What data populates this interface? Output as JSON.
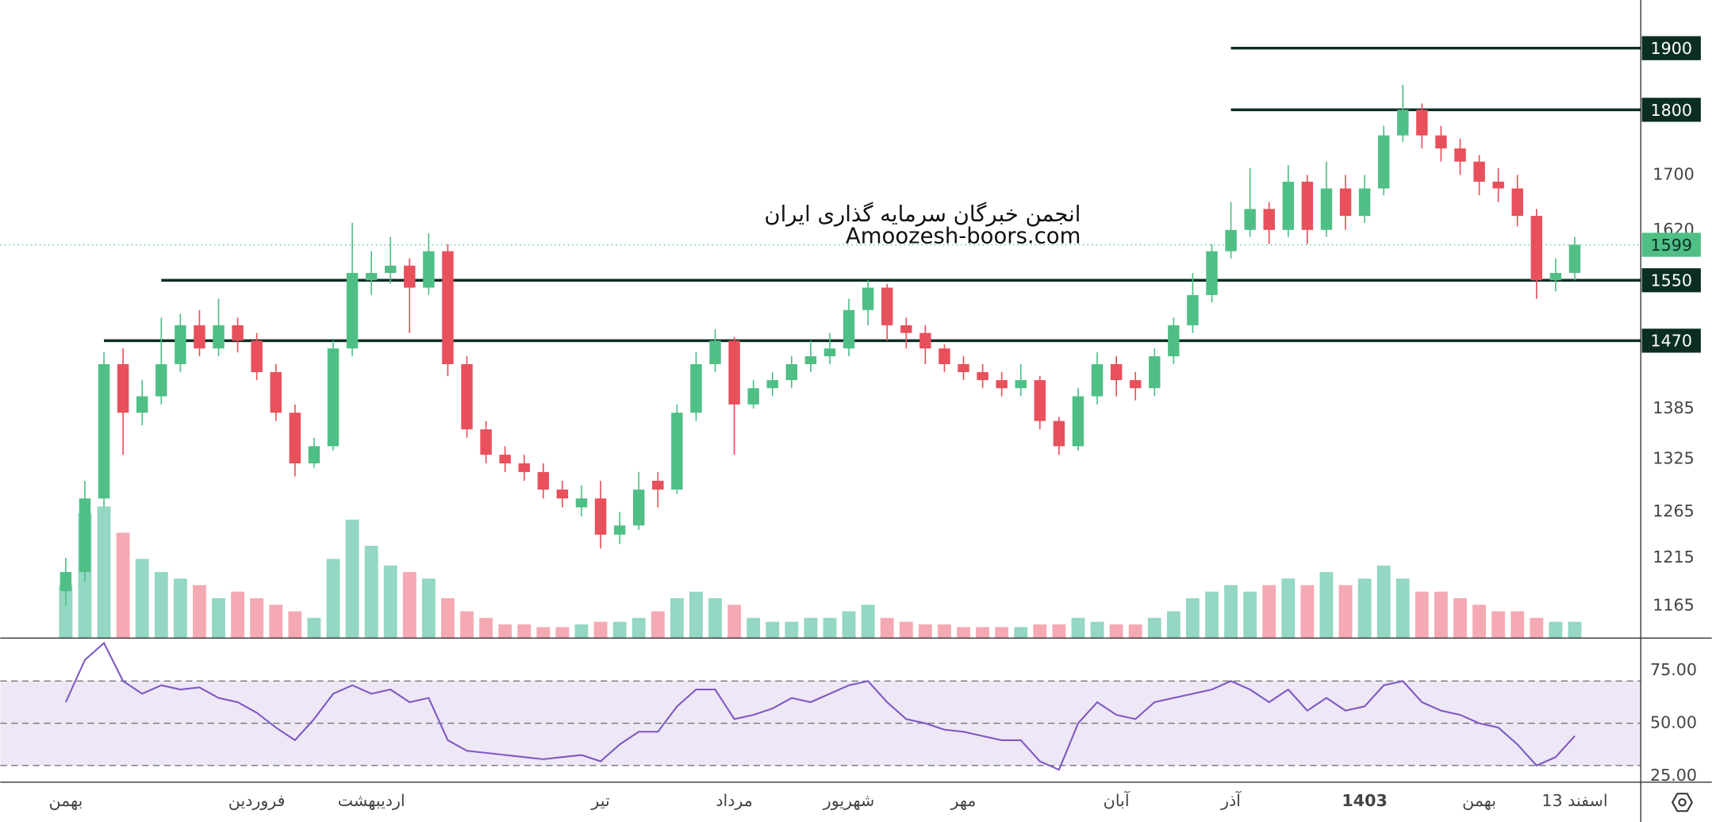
{
  "chart_data": [
    {
      "type": "candlestick",
      "title": "انجمن خبرگان سرمایه گذاری ایران",
      "subtitle": "Amoozesh-boors.com",
      "categories": [
        "بهمن",
        null,
        null,
        null,
        null,
        null,
        null,
        null,
        null,
        null,
        "فروردین",
        null,
        null,
        null,
        null,
        null,
        "اردیبهشت",
        null,
        null,
        null,
        null,
        null,
        null,
        null,
        null,
        null,
        null,
        null,
        "تیر",
        null,
        null,
        null,
        null,
        null,
        null,
        "مرداد",
        null,
        null,
        null,
        null,
        null,
        "شهریور",
        null,
        null,
        null,
        null,
        null,
        "مهر",
        null,
        null,
        null,
        null,
        null,
        null,
        null,
        "آبان",
        null,
        null,
        null,
        null,
        null,
        "آذر",
        null,
        null,
        null,
        null,
        null,
        null,
        "1403",
        null,
        null,
        null,
        null,
        null,
        "بهمن",
        null,
        null,
        null,
        null,
        "13 اسفند"
      ],
      "open": [
        1180,
        1200,
        1280,
        1440,
        1380,
        1400,
        1440,
        1490,
        1460,
        1490,
        1470,
        1430,
        1380,
        1320,
        1340,
        1460,
        1550,
        1560,
        1570,
        1540,
        1590,
        1440,
        1360,
        1330,
        1320,
        1310,
        1290,
        1270,
        1280,
        1240,
        1250,
        1300,
        1290,
        1380,
        1440,
        1470,
        1390,
        1410,
        1420,
        1440,
        1450,
        1460,
        1510,
        1540,
        1490,
        1480,
        1460,
        1440,
        1430,
        1420,
        1410,
        1420,
        1370,
        1340,
        1400,
        1440,
        1420,
        1410,
        1450,
        1490,
        1530,
        1590,
        1620,
        1650,
        1620,
        1690,
        1620,
        1680,
        1640,
        1680,
        1760,
        1800,
        1760,
        1740,
        1720,
        1690,
        1680,
        1640,
        1550,
        1560
      ],
      "high": [
        1215,
        1300,
        1455,
        1460,
        1420,
        1500,
        1505,
        1510,
        1525,
        1500,
        1480,
        1440,
        1390,
        1350,
        1470,
        1630,
        1590,
        1610,
        1580,
        1615,
        1600,
        1450,
        1370,
        1340,
        1330,
        1320,
        1300,
        1295,
        1300,
        1265,
        1310,
        1310,
        1390,
        1455,
        1485,
        1475,
        1420,
        1430,
        1450,
        1470,
        1480,
        1525,
        1550,
        1545,
        1500,
        1490,
        1465,
        1450,
        1440,
        1430,
        1440,
        1425,
        1375,
        1410,
        1455,
        1450,
        1430,
        1460,
        1500,
        1560,
        1600,
        1660,
        1710,
        1660,
        1715,
        1700,
        1720,
        1700,
        1700,
        1775,
        1840,
        1810,
        1775,
        1755,
        1730,
        1710,
        1700,
        1650,
        1580,
        1610
      ],
      "low": [
        1165,
        1190,
        1270,
        1330,
        1365,
        1390,
        1430,
        1450,
        1450,
        1455,
        1420,
        1370,
        1305,
        1315,
        1335,
        1450,
        1530,
        1545,
        1480,
        1530,
        1425,
        1350,
        1320,
        1310,
        1300,
        1280,
        1270,
        1260,
        1225,
        1230,
        1245,
        1270,
        1285,
        1370,
        1430,
        1330,
        1385,
        1400,
        1410,
        1430,
        1440,
        1450,
        1490,
        1470,
        1460,
        1440,
        1430,
        1420,
        1410,
        1400,
        1400,
        1360,
        1330,
        1335,
        1390,
        1400,
        1395,
        1400,
        1440,
        1480,
        1520,
        1580,
        1610,
        1600,
        1610,
        1600,
        1610,
        1620,
        1630,
        1670,
        1750,
        1740,
        1720,
        1700,
        1670,
        1660,
        1625,
        1525,
        1535,
        1550
      ],
      "close": [
        1200,
        1280,
        1440,
        1380,
        1400,
        1440,
        1490,
        1460,
        1490,
        1470,
        1430,
        1380,
        1320,
        1340,
        1460,
        1560,
        1560,
        1570,
        1540,
        1590,
        1440,
        1360,
        1330,
        1320,
        1310,
        1290,
        1280,
        1280,
        1240,
        1250,
        1290,
        1290,
        1380,
        1440,
        1470,
        1390,
        1410,
        1420,
        1440,
        1450,
        1460,
        1510,
        1540,
        1490,
        1480,
        1460,
        1440,
        1430,
        1420,
        1410,
        1420,
        1370,
        1340,
        1400,
        1440,
        1420,
        1410,
        1450,
        1490,
        1530,
        1590,
        1620,
        1650,
        1620,
        1690,
        1620,
        1680,
        1640,
        1680,
        1760,
        1800,
        1760,
        1740,
        1720,
        1690,
        1680,
        1640,
        1550,
        1560,
        1599
      ],
      "volume": [
        40,
        95,
        100,
        80,
        60,
        50,
        45,
        40,
        30,
        35,
        30,
        25,
        20,
        15,
        60,
        90,
        70,
        55,
        50,
        45,
        30,
        20,
        15,
        10,
        10,
        8,
        8,
        10,
        12,
        12,
        15,
        20,
        30,
        35,
        30,
        25,
        15,
        12,
        12,
        15,
        15,
        20,
        25,
        15,
        12,
        10,
        10,
        8,
        8,
        8,
        8,
        10,
        10,
        15,
        12,
        10,
        10,
        15,
        20,
        30,
        35,
        40,
        35,
        40,
        45,
        40,
        50,
        40,
        45,
        55,
        45,
        35,
        35,
        30,
        25,
        20,
        20,
        15,
        12,
        12
      ],
      "vlim": [
        0,
        100
      ],
      "up_color": "#4fbf86",
      "down_color": "#e8505b",
      "volume_up_color": "#93d7c4",
      "volume_down_color": "#f5aab3",
      "levels": [
        1900,
        1800,
        1550,
        1470
      ],
      "level_starts": [
        61,
        61,
        5,
        2
      ],
      "level_color": "#0b2e23",
      "ylim": [
        1133,
        1982
      ],
      "log": true,
      "yticks": [
        1165,
        1215,
        1265,
        1325,
        1385,
        1620,
        1700
      ],
      "grid": false
    },
    {
      "type": "line",
      "values": [
        60,
        80,
        88,
        70,
        64,
        68,
        66,
        67,
        62,
        60,
        55,
        48,
        42,
        52,
        64,
        68,
        64,
        66,
        60,
        62,
        42,
        37,
        36,
        35,
        34,
        33,
        34,
        35,
        32,
        40,
        46,
        46,
        58,
        66,
        66,
        52,
        54,
        57,
        62,
        60,
        64,
        68,
        70,
        60,
        52,
        50,
        47,
        46,
        44,
        42,
        42,
        32,
        28,
        50,
        60,
        54,
        52,
        60,
        62,
        64,
        66,
        70,
        66,
        60,
        66,
        56,
        62,
        56,
        58,
        68,
        70,
        60,
        56,
        54,
        50,
        48,
        40,
        30,
        34,
        44
      ],
      "color": "#7e57c2",
      "band": [
        30,
        70
      ],
      "band_color": "#ede7f6",
      "hlines": [
        70,
        50,
        30
      ],
      "ylim": [
        22.4,
        90.1
      ],
      "yticks": [
        {
          "value": 75,
          "label": "75.00"
        },
        {
          "value": 50,
          "label": "50.00"
        },
        {
          "value": 25,
          "label": "25.00"
        }
      ]
    }
  ]
}
